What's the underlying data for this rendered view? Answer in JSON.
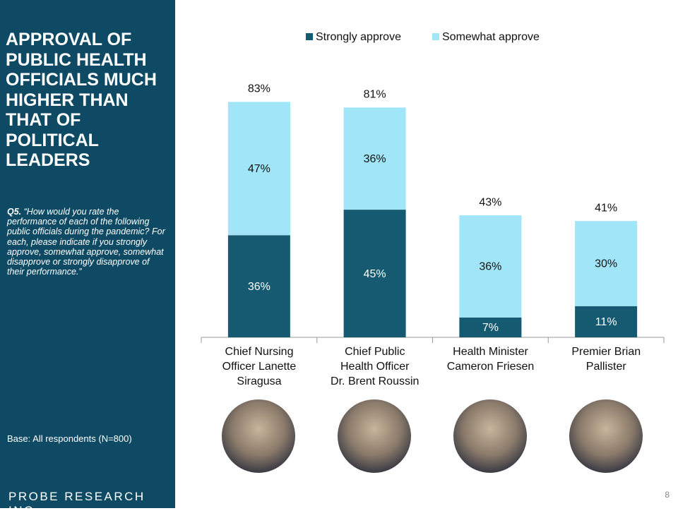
{
  "chart_data": {
    "type": "stacked_bar",
    "title": "APPROVAL OF PUBLIC HEALTH OFFICIALS MUCH HIGHER THAN THAT OF POLITICAL LEADERS",
    "question_label": "Q5.",
    "question_text": "“How would you rate the performance of each of the following public officials during the pandemic? For each, please indicate if you strongly approve, somewhat approve, somewhat disapprove or strongly disapprove of their performance.”",
    "base_note": "Base: All respondents (N=800)",
    "footer": "PROBE RESEARCH INC.",
    "page_number": "8",
    "categories": [
      "Chief Nursing\nOfficer Lanette\nSiragusa",
      "Chief Public\nHealth Officer\nDr. Brent Roussin",
      "Health Minister\nCameron Friesen",
      "Premier Brian\nPallister"
    ],
    "series": [
      {
        "name": "Strongly approve",
        "color": "#165a72",
        "values": [
          36,
          45,
          7,
          11
        ],
        "value_labels": [
          "36%",
          "45%",
          "7%",
          "11%"
        ]
      },
      {
        "name": "Somewhat approve",
        "color": "#a0e6f8",
        "values": [
          47,
          36,
          36,
          30
        ],
        "value_labels": [
          "47%",
          "36%",
          "36%",
          "30%"
        ]
      }
    ],
    "totals": {
      "values": [
        83,
        81,
        43,
        41
      ],
      "value_labels": [
        "83%",
        "81%",
        "43%",
        "41%"
      ]
    },
    "ylim": [
      0,
      100
    ],
    "legend": "top"
  }
}
